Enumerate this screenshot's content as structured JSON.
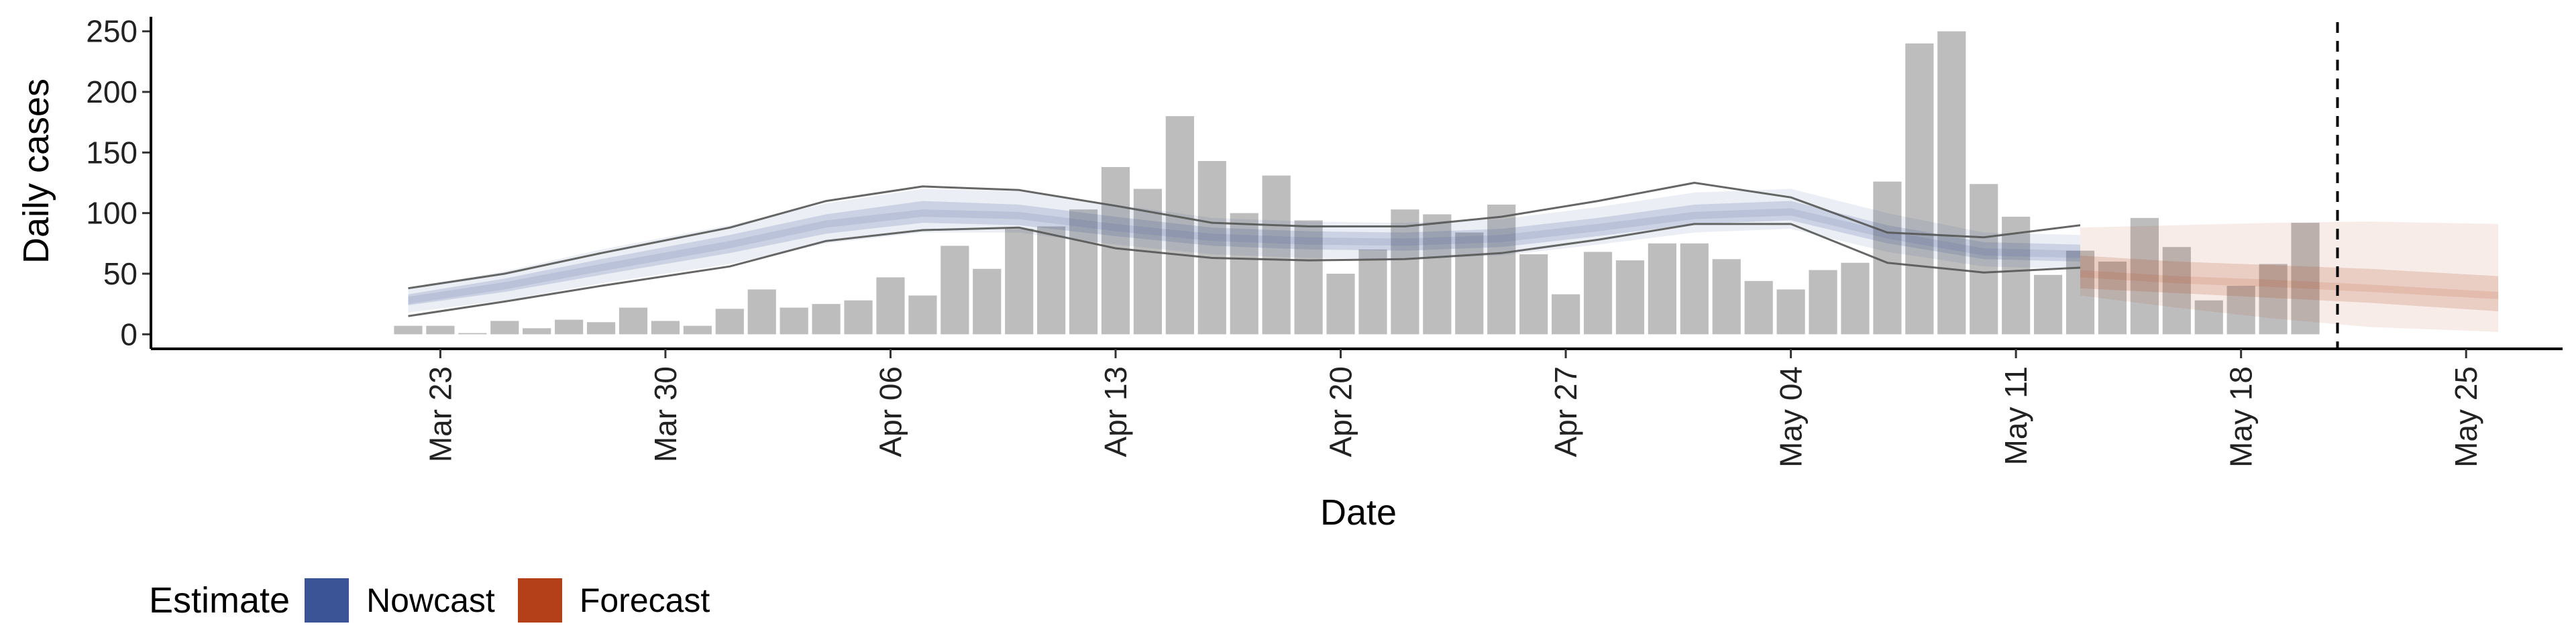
{
  "chart_data": {
    "type": "bar",
    "xlabel": "Date",
    "ylabel": "Daily cases",
    "yticks": [
      0,
      50,
      100,
      150,
      200,
      250
    ],
    "ylim": [
      -12,
      262
    ],
    "xlim": [
      "2020-03-14",
      "2020-05-28"
    ],
    "xticks": [
      {
        "date": "2020-03-23",
        "label": "Mar 23"
      },
      {
        "date": "2020-03-30",
        "label": "Mar 30"
      },
      {
        "date": "2020-04-06",
        "label": "Apr 06"
      },
      {
        "date": "2020-04-13",
        "label": "Apr 13"
      },
      {
        "date": "2020-04-20",
        "label": "Apr 20"
      },
      {
        "date": "2020-04-27",
        "label": "Apr 27"
      },
      {
        "date": "2020-05-04",
        "label": "May 04"
      },
      {
        "date": "2020-05-11",
        "label": "May 11"
      },
      {
        "date": "2020-05-18",
        "label": "May 18"
      },
      {
        "date": "2020-05-25",
        "label": "May 25"
      }
    ],
    "bars": {
      "start_date": "2020-03-22",
      "color": "#bdbdbd",
      "values": [
        7,
        7,
        1,
        11,
        5,
        12,
        10,
        22,
        11,
        7,
        21,
        37,
        22,
        25,
        28,
        47,
        32,
        73,
        54,
        87,
        89,
        103,
        138,
        120,
        180,
        143,
        100,
        131,
        94,
        50,
        70,
        103,
        99,
        84,
        107,
        66,
        33,
        68,
        61,
        75,
        75,
        62,
        44,
        37,
        53,
        59,
        126,
        240,
        250,
        124,
        97,
        49,
        69,
        60,
        96,
        72,
        28,
        40,
        58,
        92
      ]
    },
    "estimate_series": [
      {
        "name": "Nowcast",
        "color": "#3b5496",
        "dates": [
          "2020-03-22",
          "2020-03-25",
          "2020-03-28",
          "2020-04-01",
          "2020-04-04",
          "2020-04-07",
          "2020-04-10",
          "2020-04-13",
          "2020-04-16",
          "2020-04-19",
          "2020-04-22",
          "2020-04-25",
          "2020-04-28",
          "2020-05-01",
          "2020-05-04",
          "2020-05-07",
          "2020-05-10",
          "2020-05-13"
        ],
        "median": [
          28,
          40,
          55,
          74,
          91,
          100,
          98,
          88,
          80,
          77,
          76,
          79,
          88,
          98,
          101,
          82,
          68,
          66
        ],
        "inner_low": [
          24,
          35,
          49,
          67,
          83,
          92,
          90,
          81,
          73,
          70,
          69,
          72,
          81,
          91,
          94,
          75,
          62,
          60
        ],
        "inner_high": [
          33,
          46,
          62,
          82,
          99,
          110,
          107,
          97,
          88,
          85,
          84,
          87,
          96,
          107,
          110,
          90,
          76,
          74
        ],
        "outer_low": [
          18,
          28,
          42,
          58,
          75,
          84,
          84,
          74,
          66,
          63,
          62,
          65,
          74,
          84,
          87,
          68,
          56,
          54
        ],
        "outer_high": [
          38,
          52,
          70,
          90,
          108,
          120,
          118,
          107,
          96,
          93,
          92,
          95,
          105,
          117,
          120,
          100,
          84,
          82
        ],
        "line_low": [
          15,
          27,
          40,
          56,
          77,
          86,
          88,
          71,
          63,
          61,
          62,
          67,
          78,
          91,
          91,
          59,
          51,
          55
        ],
        "line_high": [
          38,
          50,
          67,
          88,
          110,
          122,
          119,
          106,
          92,
          89,
          89,
          97,
          110,
          125,
          113,
          84,
          80,
          90
        ]
      },
      {
        "name": "Forecast",
        "color": "#b4401a",
        "dates": [
          "2020-05-13",
          "2020-05-16",
          "2020-05-19",
          "2020-05-22",
          "2020-05-26"
        ],
        "median": [
          50,
          45,
          42,
          38,
          32
        ],
        "inner_low": [
          38,
          34,
          30,
          26,
          19
        ],
        "inner_high": [
          65,
          60,
          57,
          54,
          48
        ],
        "outer_low": [
          32,
          22,
          13,
          6,
          2
        ],
        "outer_high": [
          88,
          90,
          92,
          93,
          91
        ]
      }
    ],
    "vline_date": "2020-05-21",
    "legend": {
      "title": "Estimate",
      "position": "bottom-left"
    }
  }
}
